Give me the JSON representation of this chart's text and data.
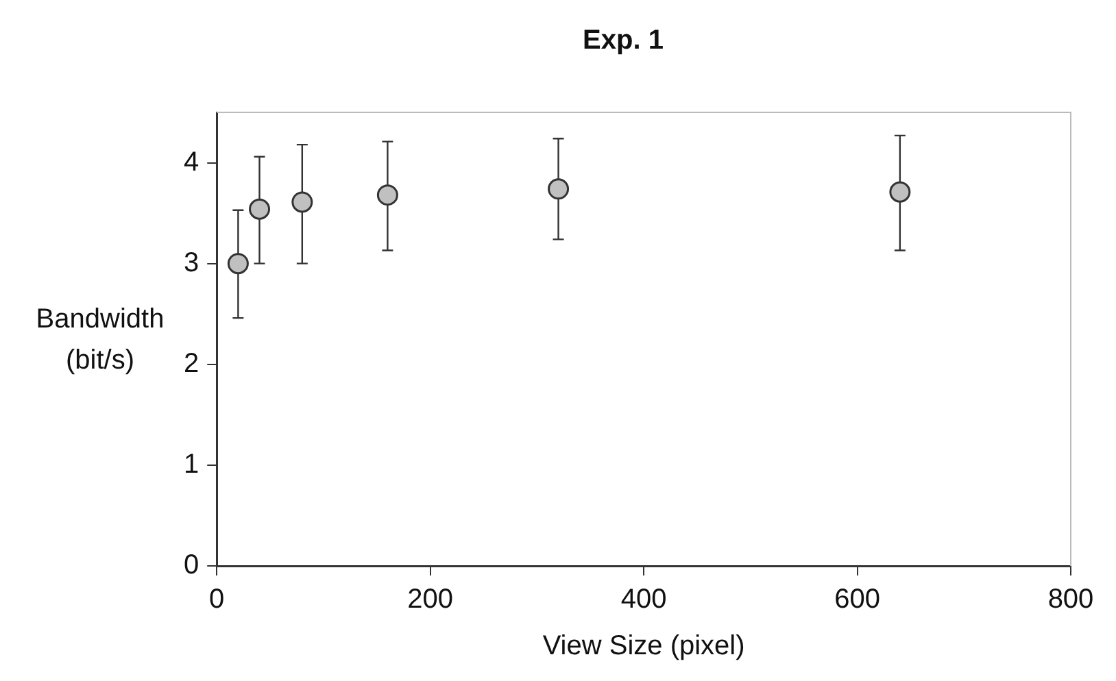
{
  "chart_data": {
    "type": "scatter",
    "title": "Exp. 1",
    "xlabel": "View Size (pixel)",
    "ylabel": "Bandwidth\n(bit/s)",
    "x": [
      20,
      40,
      80,
      160,
      320,
      640
    ],
    "series": [
      {
        "color": "#c0c0c0",
        "values": [
          3.0,
          3.54,
          3.61,
          3.68,
          3.74,
          3.71
        ],
        "errors": [
          [
            2.46,
            3.53
          ],
          [
            3.0,
            4.06
          ],
          [
            3.0,
            4.18
          ],
          [
            3.13,
            4.21
          ],
          [
            3.24,
            4.24
          ],
          [
            3.13,
            4.27
          ]
        ]
      }
    ],
    "xlim": [
      0,
      800
    ],
    "xticks": [
      0,
      200,
      400,
      600,
      800
    ],
    "ylim": [
      0,
      4.5
    ],
    "yticks": [
      0,
      1,
      2,
      3,
      4
    ],
    "marker": "circle",
    "legend": false,
    "grid": false
  }
}
